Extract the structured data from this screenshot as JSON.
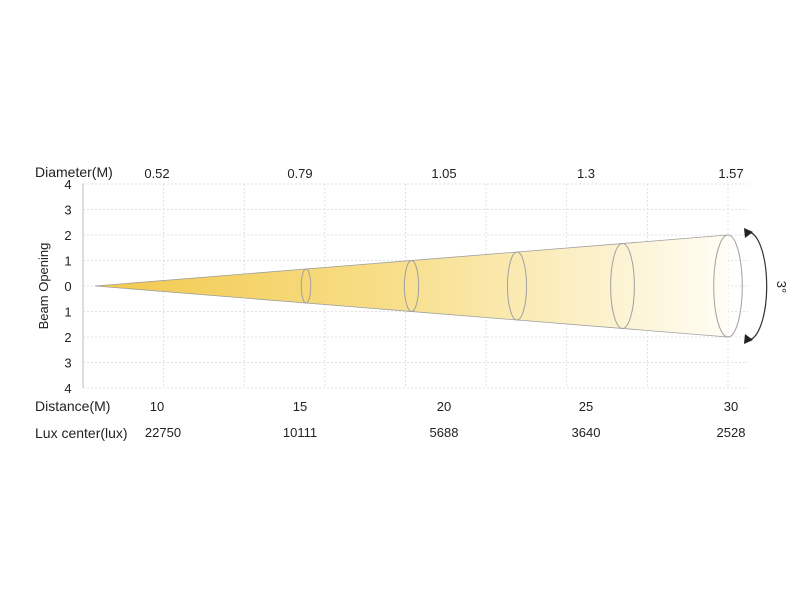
{
  "chart_data": {
    "type": "beam-angle",
    "beam_angle_label": "3°",
    "y_axis": {
      "label": "Beam Opening",
      "ticks": [
        "4",
        "3",
        "2",
        "1",
        "0",
        "1",
        "2",
        "3",
        "4"
      ],
      "range": [
        -4,
        4
      ]
    },
    "rows": {
      "diameter_label": "Diameter(M)",
      "distance_label": "Distance(M)",
      "lux_label": "Lux center(lux)"
    },
    "points": [
      {
        "distance": 10,
        "diameter": 0.52,
        "lux": 22750,
        "distance_text": "10",
        "diameter_text": "0.52",
        "lux_text": "22750"
      },
      {
        "distance": 15,
        "diameter": 0.79,
        "lux": 10111,
        "distance_text": "15",
        "diameter_text": "0.79",
        "lux_text": "10111"
      },
      {
        "distance": 20,
        "diameter": 1.05,
        "lux": 5688,
        "distance_text": "20",
        "diameter_text": "1.05",
        "lux_text": "5688"
      },
      {
        "distance": 25,
        "diameter": 1.3,
        "lux": 3640,
        "distance_text": "25",
        "diameter_text": "1.3",
        "lux_text": "3640"
      },
      {
        "distance": 30,
        "diameter": 1.57,
        "lux": 2528,
        "distance_text": "30",
        "diameter_text": "1.57",
        "lux_text": "2528"
      }
    ],
    "grid": true,
    "colors": {
      "beam_start": "#f2c94c",
      "beam_end": "#fffdf5",
      "outline": "#a0a0a0",
      "grid": "#d9d9d9"
    }
  }
}
